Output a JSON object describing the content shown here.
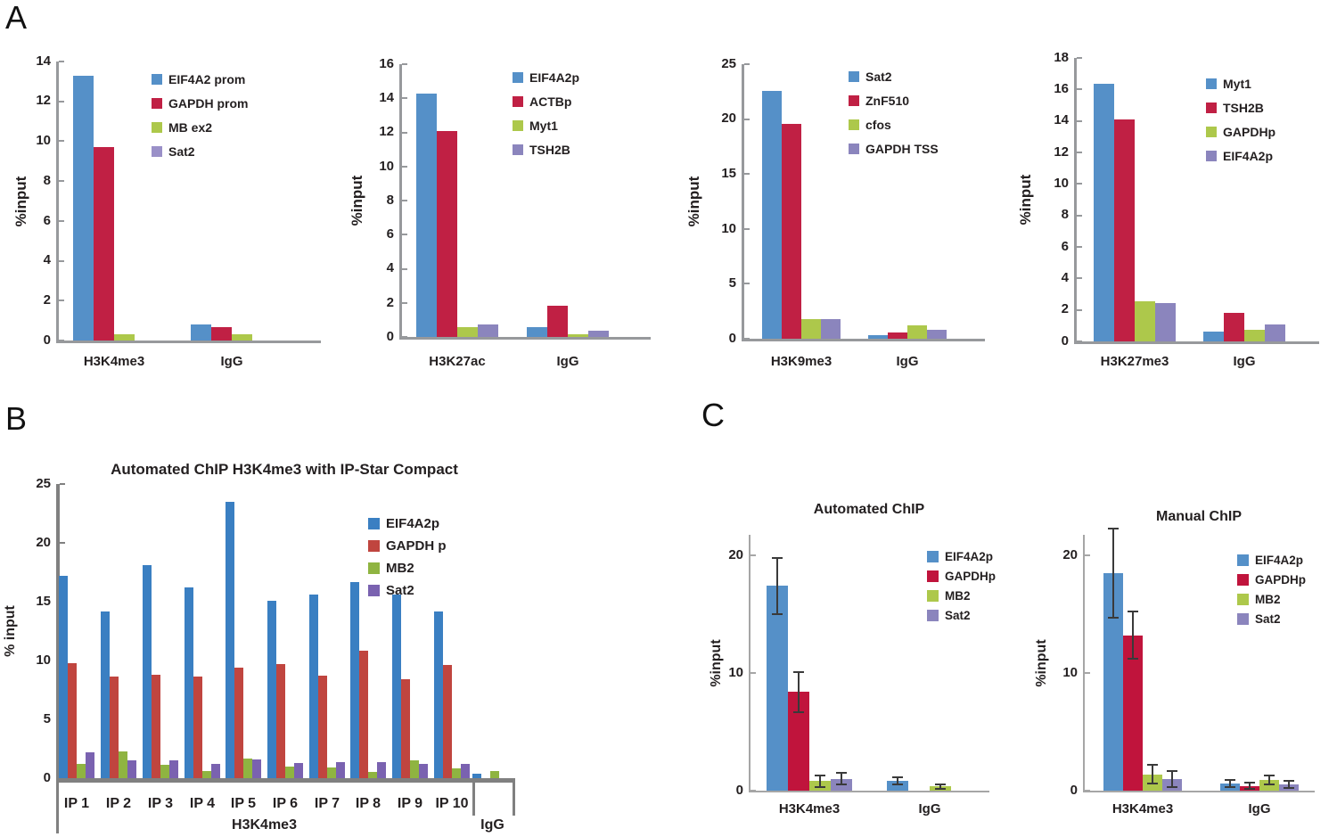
{
  "panel_labels": {
    "a": "A",
    "b": "B",
    "c": "C"
  },
  "chart_data": [
    {
      "id": "a1",
      "type": "bar",
      "title": "",
      "xlabel": "",
      "ylabel": "%input",
      "ylim": [
        0,
        14
      ],
      "yticks": [
        0,
        2,
        4,
        6,
        8,
        10,
        12,
        14
      ],
      "grid": false,
      "legend_position": "top-right",
      "categories": [
        "H3K4me3",
        "IgG"
      ],
      "series": [
        {
          "name": "EIF4A2 prom",
          "color": "#5590c8",
          "values": [
            13.3,
            0.8
          ]
        },
        {
          "name": "GAPDH prom",
          "color": "#c02044",
          "values": [
            9.7,
            0.65
          ]
        },
        {
          "name": "MB ex2",
          "color": "#adc84b",
          "values": [
            0.3,
            0.3
          ]
        },
        {
          "name": "Sat2",
          "color": "#9a90c8",
          "values": [
            0,
            0
          ]
        }
      ]
    },
    {
      "id": "a2",
      "type": "bar",
      "title": "",
      "xlabel": "",
      "ylabel": "%input",
      "ylim": [
        0,
        16
      ],
      "yticks": [
        0,
        2,
        4,
        6,
        8,
        10,
        12,
        14,
        16
      ],
      "grid": false,
      "legend_position": "top-right",
      "categories": [
        "H3K27ac",
        "IgG"
      ],
      "series": [
        {
          "name": "EIF4A2p",
          "color": "#5590c8",
          "values": [
            14.3,
            0.6
          ]
        },
        {
          "name": "ACTBp",
          "color": "#c02044",
          "values": [
            12.1,
            1.85
          ]
        },
        {
          "name": "Myt1",
          "color": "#adc84b",
          "values": [
            0.55,
            0.15
          ]
        },
        {
          "name": "TSH2B",
          "color": "#8b85bd",
          "values": [
            0.75,
            0.35
          ]
        }
      ]
    },
    {
      "id": "a3",
      "type": "bar",
      "title": "",
      "xlabel": "",
      "ylabel": "%input",
      "ylim": [
        0,
        25
      ],
      "yticks": [
        0,
        5,
        10,
        15,
        20,
        25
      ],
      "grid": false,
      "legend_position": "top-right",
      "categories": [
        "H3K9me3",
        "IgG"
      ],
      "series": [
        {
          "name": "Sat2",
          "color": "#5590c8",
          "values": [
            22.6,
            0.3
          ]
        },
        {
          "name": "ZnF510",
          "color": "#c02044",
          "values": [
            19.6,
            0.6
          ]
        },
        {
          "name": "cfos",
          "color": "#adc84b",
          "values": [
            1.8,
            1.25
          ]
        },
        {
          "name": "GAPDH TSS",
          "color": "#8b85bd",
          "values": [
            1.8,
            0.85
          ]
        }
      ]
    },
    {
      "id": "a4",
      "type": "bar",
      "title": "",
      "xlabel": "",
      "ylabel": "%input",
      "ylim": [
        0,
        18
      ],
      "yticks": [
        0,
        2,
        4,
        6,
        8,
        10,
        12,
        14,
        16,
        18
      ],
      "grid": false,
      "legend_position": "top-right",
      "categories": [
        "H3K27me3",
        "IgG"
      ],
      "series": [
        {
          "name": "Myt1",
          "color": "#5590c8",
          "values": [
            16.35,
            0.65
          ]
        },
        {
          "name": "TSH2B",
          "color": "#c02044",
          "values": [
            14.1,
            1.8
          ]
        },
        {
          "name": "GAPDHp",
          "color": "#adc84b",
          "values": [
            2.55,
            0.75
          ]
        },
        {
          "name": "EIF4A2p",
          "color": "#8b85bd",
          "values": [
            2.45,
            1.1
          ]
        }
      ]
    },
    {
      "id": "b",
      "type": "bar",
      "title": "Automated ChIP H3K4me3 with IP-Star Compact",
      "xlabel": "",
      "ylabel": "% input",
      "ylim": [
        0,
        25
      ],
      "yticks": [
        0,
        5,
        10,
        15,
        20,
        25
      ],
      "grid": false,
      "legend_position": "top-right",
      "categories": [
        "IP 1",
        "IP 2",
        "IP 3",
        "IP 4",
        "IP 5",
        "IP 6",
        "IP 7",
        "IP 8",
        "IP 9",
        "IP 10",
        ""
      ],
      "axis2_groups": [
        {
          "label": "H3K4me3",
          "span": [
            0,
            10
          ]
        },
        {
          "label": "IgG",
          "span": [
            10,
            11
          ]
        }
      ],
      "series": [
        {
          "name": "EIF4A2p",
          "color": "#3a7fc2",
          "values": [
            17.2,
            14.2,
            18.1,
            16.2,
            23.5,
            15.1,
            15.6,
            16.7,
            15.6,
            14.2,
            0.35
          ]
        },
        {
          "name": "GAPDH p",
          "color": "#c0453f",
          "values": [
            9.8,
            8.6,
            8.8,
            8.6,
            9.4,
            9.7,
            8.7,
            10.8,
            8.4,
            9.6,
            0
          ]
        },
        {
          "name": "MB2",
          "color": "#8fb441",
          "values": [
            1.2,
            2.3,
            1.1,
            0.6,
            1.7,
            1.0,
            0.9,
            0.5,
            1.5,
            0.8,
            0.6
          ]
        },
        {
          "name": "Sat2",
          "color": "#7a62b0",
          "values": [
            2.2,
            1.5,
            1.5,
            1.2,
            1.6,
            1.3,
            1.4,
            1.4,
            1.2,
            1.2,
            0
          ]
        }
      ]
    },
    {
      "id": "c1",
      "type": "bar",
      "title": "Automated ChIP",
      "xlabel": "",
      "ylabel": "%input",
      "ylim": [
        0,
        21.5
      ],
      "yticks": [
        0,
        10,
        20
      ],
      "grid": false,
      "legend_position": "top-right",
      "error_bars": true,
      "categories": [
        "H3K4me3",
        "IgG"
      ],
      "series": [
        {
          "name": "EIF4A2p",
          "color": "#5590c8",
          "values": [
            17.4,
            0.8
          ],
          "errors": [
            2.4,
            0.3
          ]
        },
        {
          "name": "GAPDHp",
          "color": "#c0143c",
          "values": [
            8.4,
            0
          ],
          "errors": [
            1.7,
            0
          ]
        },
        {
          "name": "MB2",
          "color": "#adc84b",
          "values": [
            0.8,
            0.35
          ],
          "errors": [
            0.5,
            0.2
          ]
        },
        {
          "name": "Sat2",
          "color": "#8b85bd",
          "values": [
            1.0,
            0
          ],
          "errors": [
            0.5,
            0
          ]
        }
      ]
    },
    {
      "id": "c2",
      "type": "bar",
      "title": "Manual ChIP",
      "xlabel": "",
      "ylabel": "%input",
      "ylim": [
        0,
        21.5
      ],
      "yticks": [
        0,
        10,
        20
      ],
      "grid": false,
      "legend_position": "top-right",
      "error_bars": true,
      "categories": [
        "H3K4me3",
        "IgG"
      ],
      "series": [
        {
          "name": "EIF4A2p",
          "color": "#5590c8",
          "values": [
            18.5,
            0.6
          ],
          "errors": [
            3.8,
            0.3
          ]
        },
        {
          "name": "GAPDHp",
          "color": "#c0143c",
          "values": [
            13.2,
            0.4
          ],
          "errors": [
            2.0,
            0.25
          ]
        },
        {
          "name": "MB2",
          "color": "#adc84b",
          "values": [
            1.4,
            0.9
          ],
          "errors": [
            0.8,
            0.4
          ]
        },
        {
          "name": "Sat2",
          "color": "#8b85bd",
          "values": [
            1.0,
            0.55
          ],
          "errors": [
            0.7,
            0.3
          ]
        }
      ]
    }
  ]
}
